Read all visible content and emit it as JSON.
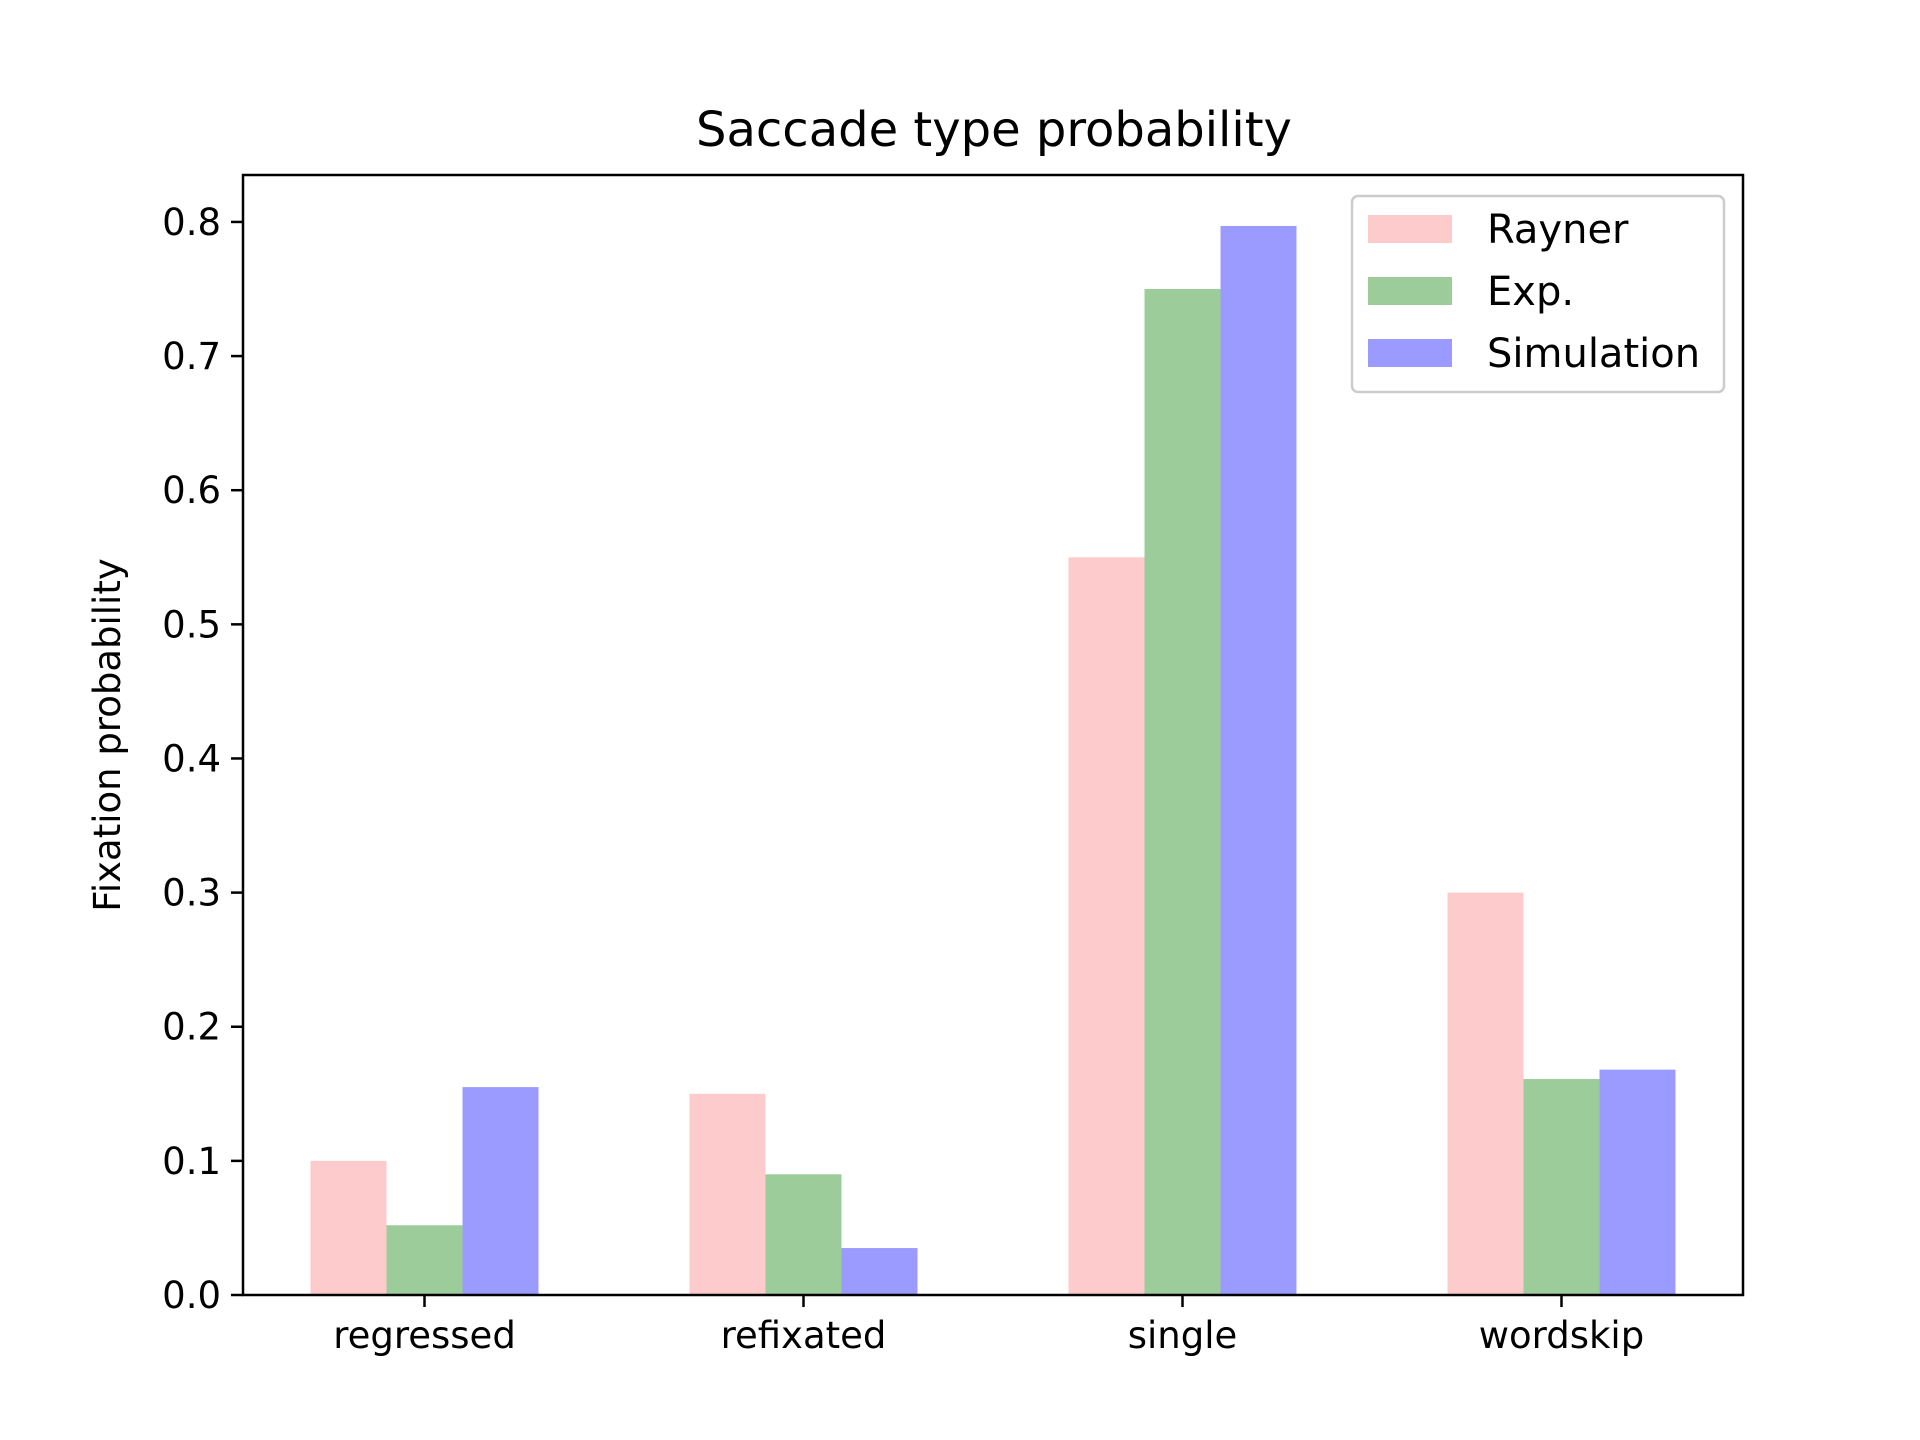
{
  "chart_data": {
    "type": "bar",
    "title": "Saccade type probability",
    "xlabel": "",
    "ylabel": "Fixation probability",
    "categories": [
      "regressed",
      "refixated",
      "single",
      "wordskip"
    ],
    "series": [
      {
        "name": "Rayner",
        "values": [
          0.1,
          0.15,
          0.55,
          0.3
        ],
        "color": "#fdcbcb"
      },
      {
        "name": "Exp.",
        "values": [
          0.052,
          0.09,
          0.75,
          0.161
        ],
        "color": "#9ccc99"
      },
      {
        "name": "Simulation",
        "values": [
          0.155,
          0.035,
          0.797,
          0.168
        ],
        "color": "#9b9bff"
      }
    ],
    "ylim": [
      0,
      0.835
    ],
    "yticks": [
      "0.0",
      "0.1",
      "0.2",
      "0.3",
      "0.4",
      "0.5",
      "0.6",
      "0.7",
      "0.8"
    ],
    "grid": false,
    "legend_position": "top-right"
  }
}
